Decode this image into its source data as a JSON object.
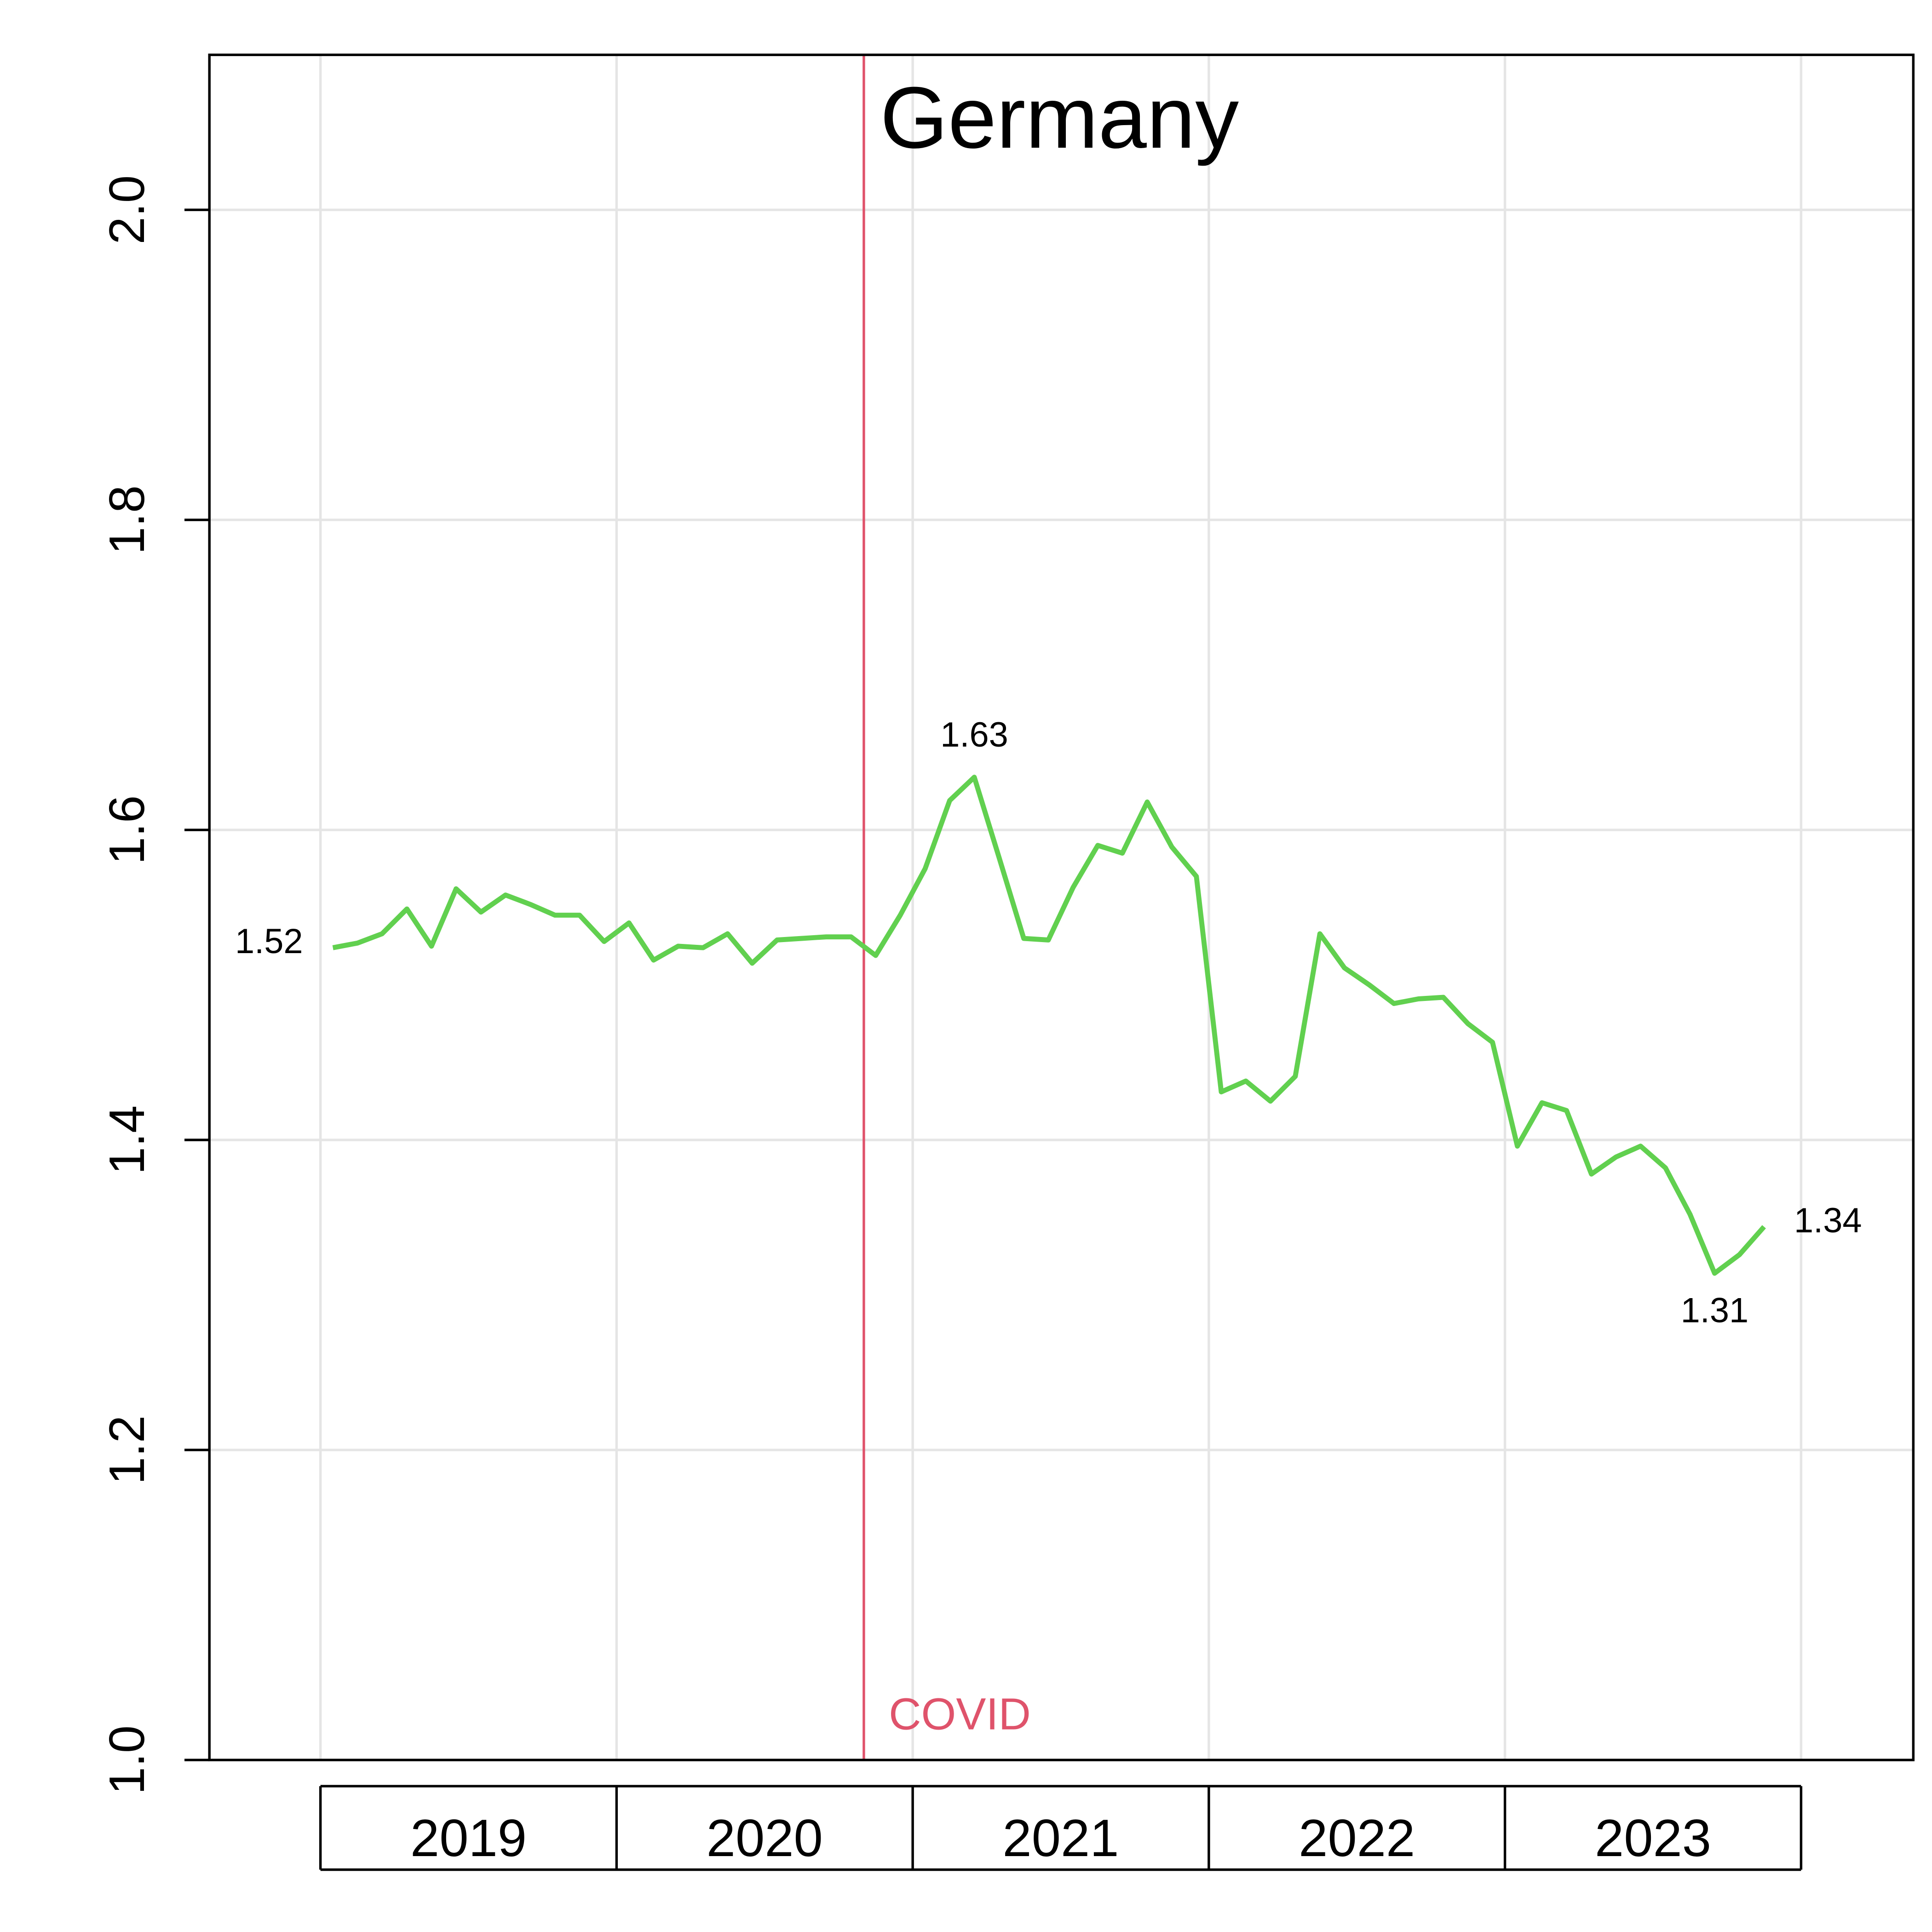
{
  "chart_data": {
    "type": "line",
    "title": "Germany",
    "x": [
      2019.042,
      2019.125,
      2019.208,
      2019.292,
      2019.375,
      2019.458,
      2019.542,
      2019.625,
      2019.708,
      2019.792,
      2019.875,
      2019.958,
      2020.042,
      2020.125,
      2020.208,
      2020.292,
      2020.375,
      2020.458,
      2020.542,
      2020.625,
      2020.708,
      2020.792,
      2020.875,
      2020.958,
      2021.042,
      2021.125,
      2021.208,
      2021.292,
      2021.375,
      2021.458,
      2021.542,
      2021.625,
      2021.708,
      2021.792,
      2021.875,
      2021.958,
      2022.042,
      2022.125,
      2022.208,
      2022.292,
      2022.375,
      2022.458,
      2022.542,
      2022.625,
      2022.708,
      2022.792,
      2022.875,
      2022.958,
      2023.042,
      2023.125,
      2023.208,
      2023.292,
      2023.375,
      2023.458,
      2023.542,
      2023.625,
      2023.708,
      2023.792,
      2023.875
    ],
    "values": [
      1.524,
      1.527,
      1.533,
      1.549,
      1.525,
      1.562,
      1.547,
      1.558,
      1.552,
      1.545,
      1.545,
      1.528,
      1.54,
      1.516,
      1.525,
      1.524,
      1.533,
      1.514,
      1.529,
      1.53,
      1.531,
      1.531,
      1.519,
      1.545,
      1.575,
      1.619,
      1.634,
      1.582,
      1.53,
      1.529,
      1.563,
      1.59,
      1.585,
      1.618,
      1.589,
      1.57,
      1.431,
      1.438,
      1.425,
      1.441,
      1.533,
      1.511,
      1.5,
      1.488,
      1.491,
      1.492,
      1.475,
      1.463,
      1.396,
      1.424,
      1.419,
      1.378,
      1.389,
      1.396,
      1.382,
      1.352,
      1.314,
      1.326,
      1.344
    ],
    "value_labels": [
      "1.52",
      null,
      null,
      null,
      null,
      null,
      null,
      null,
      null,
      null,
      null,
      null,
      null,
      null,
      null,
      null,
      null,
      null,
      null,
      null,
      null,
      null,
      null,
      null,
      null,
      null,
      "1.63",
      null,
      null,
      null,
      null,
      null,
      null,
      null,
      null,
      null,
      null,
      null,
      null,
      null,
      null,
      null,
      null,
      null,
      null,
      null,
      null,
      null,
      null,
      null,
      null,
      null,
      null,
      null,
      null,
      null,
      "1.31",
      null,
      "1.34"
    ],
    "color": "#61d04f",
    "xlim": [
      2018.625,
      2024.379
    ],
    "xticks": [
      2019,
      2020,
      2021,
      2022,
      2023,
      2024
    ],
    "year_labels": [
      "2019",
      "2020",
      "2021",
      "2022",
      "2023"
    ],
    "ylim": [
      1.0,
      2.1
    ],
    "yticks": [
      {
        "value": 1.0,
        "label": "1.0"
      },
      1.2,
      1.4,
      1.6,
      1.8,
      {
        "value": 2.0,
        "label": "2.0"
      }
    ],
    "grid": true,
    "vline": {
      "x": 2020.835,
      "label": "COVID",
      "color": "#df536b"
    }
  }
}
